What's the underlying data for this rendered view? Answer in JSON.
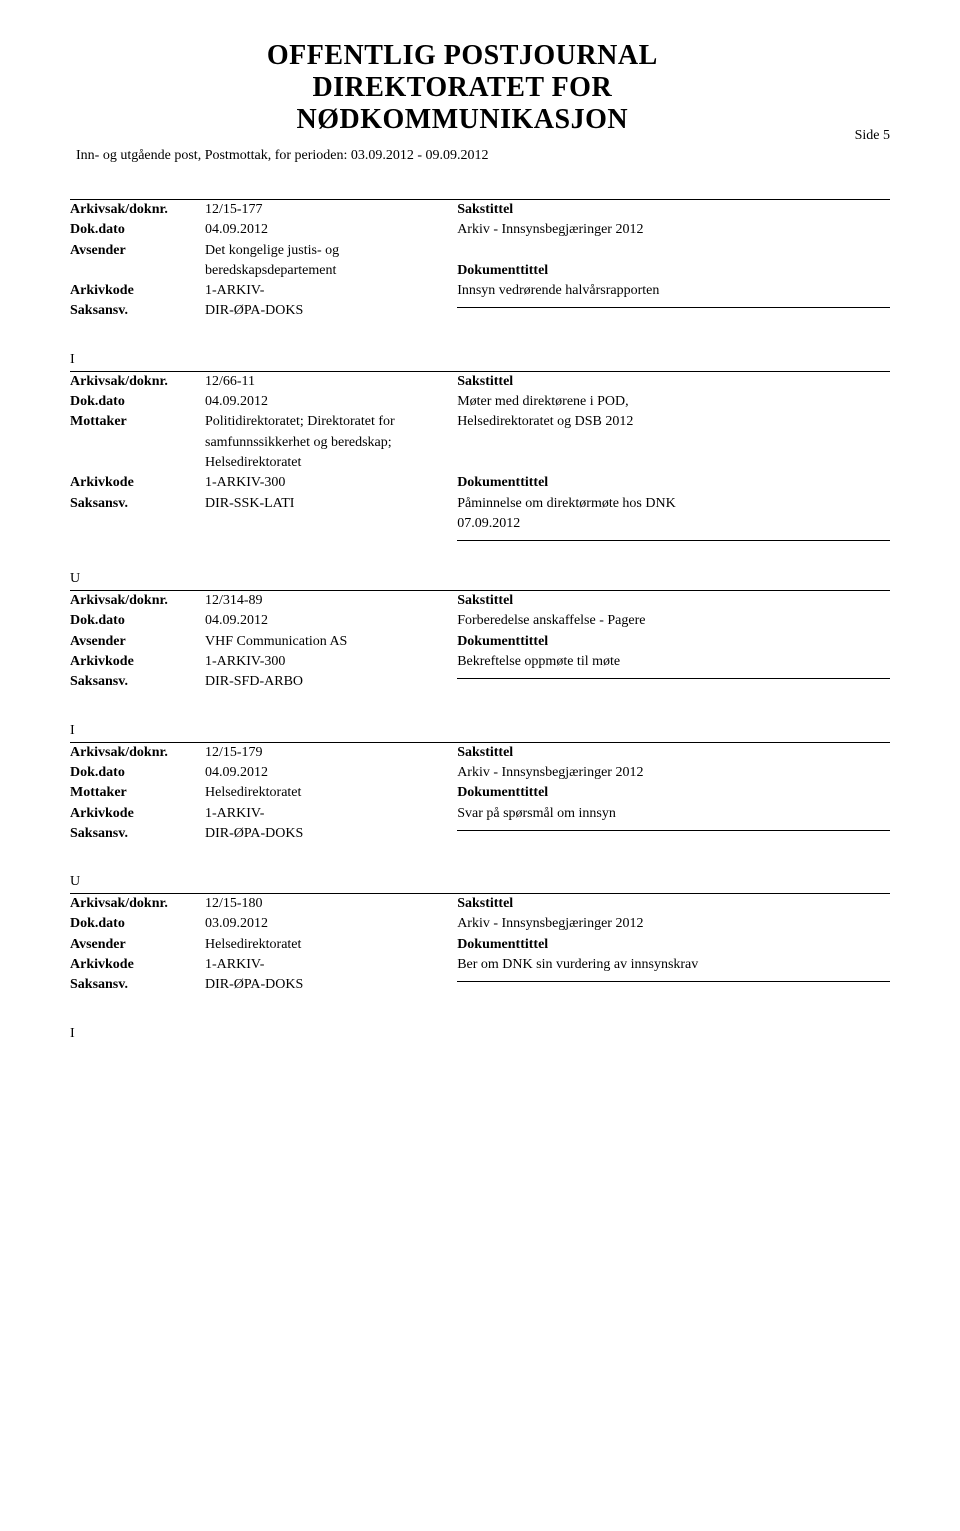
{
  "header": {
    "title_line1": "OFFENTLIG POSTJOURNAL",
    "title_line2": "DIREKTORATET FOR",
    "title_line3": "NØDKOMMUNIKASJON",
    "period": "Inn- og utgående post, Postmottak, for perioden: 03.09.2012 - 09.09.2012",
    "page": "Side 5"
  },
  "labels": {
    "arkivsak": "Arkivsak/doknr.",
    "dokdato": "Dok.dato",
    "avsender": "Avsender",
    "mottaker": "Mottaker",
    "arkivkode": "Arkivkode",
    "saksansv": "Saksansv.",
    "sakstittel": "Sakstittel",
    "dokumenttittel": "Dokumenttittel"
  },
  "entries": [
    {
      "marker": "",
      "arkivsak": "12/15-177",
      "dokdato": "04.09.2012",
      "party_label": "Avsender",
      "party_value": "Det kongelige justis- og beredskapsdepartement",
      "arkivkode": "1-ARKIV-",
      "saksansv": "DIR-ØPA-DOKS",
      "sakstittel_lines": [
        "Arkiv - Innsynsbegjæringer 2012"
      ],
      "dokumenttittel_lines": [
        "Innsyn vedrørende halvårsrapporten"
      ]
    },
    {
      "marker": "I",
      "arkivsak": "12/66-11",
      "dokdato": "04.09.2012",
      "party_label": "Mottaker",
      "party_value": "Politidirektoratet; Direktoratet for samfunnssikkerhet og beredskap; Helsedirektoratet",
      "arkivkode": "1-ARKIV-300",
      "saksansv": "DIR-SSK-LATI",
      "sakstittel_lines": [
        "Møter med direktørene i POD,",
        "Helsedirektoratet og DSB 2012"
      ],
      "dokumenttittel_lines": [
        "Påminnelse om direktørmøte hos DNK",
        "07.09.2012"
      ]
    },
    {
      "marker": "U",
      "arkivsak": "12/314-89",
      "dokdato": "04.09.2012",
      "party_label": "Avsender",
      "party_value": "VHF Communication AS",
      "arkivkode": "1-ARKIV-300",
      "saksansv": "DIR-SFD-ARBO",
      "sakstittel_lines": [
        "Forberedelse anskaffelse - Pagere"
      ],
      "dokumenttittel_lines": [
        "Bekreftelse oppmøte til møte"
      ]
    },
    {
      "marker": "I",
      "arkivsak": "12/15-179",
      "dokdato": "04.09.2012",
      "party_label": "Mottaker",
      "party_value": "Helsedirektoratet",
      "arkivkode": "1-ARKIV-",
      "saksansv": "DIR-ØPA-DOKS",
      "sakstittel_lines": [
        "Arkiv - Innsynsbegjæringer 2012"
      ],
      "dokumenttittel_lines": [
        "Svar på spørsmål om innsyn"
      ]
    },
    {
      "marker": "U",
      "arkivsak": "12/15-180",
      "dokdato": "03.09.2012",
      "party_label": "Avsender",
      "party_value": "Helsedirektoratet",
      "arkivkode": "1-ARKIV-",
      "saksansv": "DIR-ØPA-DOKS",
      "sakstittel_lines": [
        "Arkiv - Innsynsbegjæringer 2012"
      ],
      "dokumenttittel_lines": [
        "Ber om DNK sin vurdering av innsynskrav"
      ]
    }
  ],
  "trailing_marker": "I"
}
